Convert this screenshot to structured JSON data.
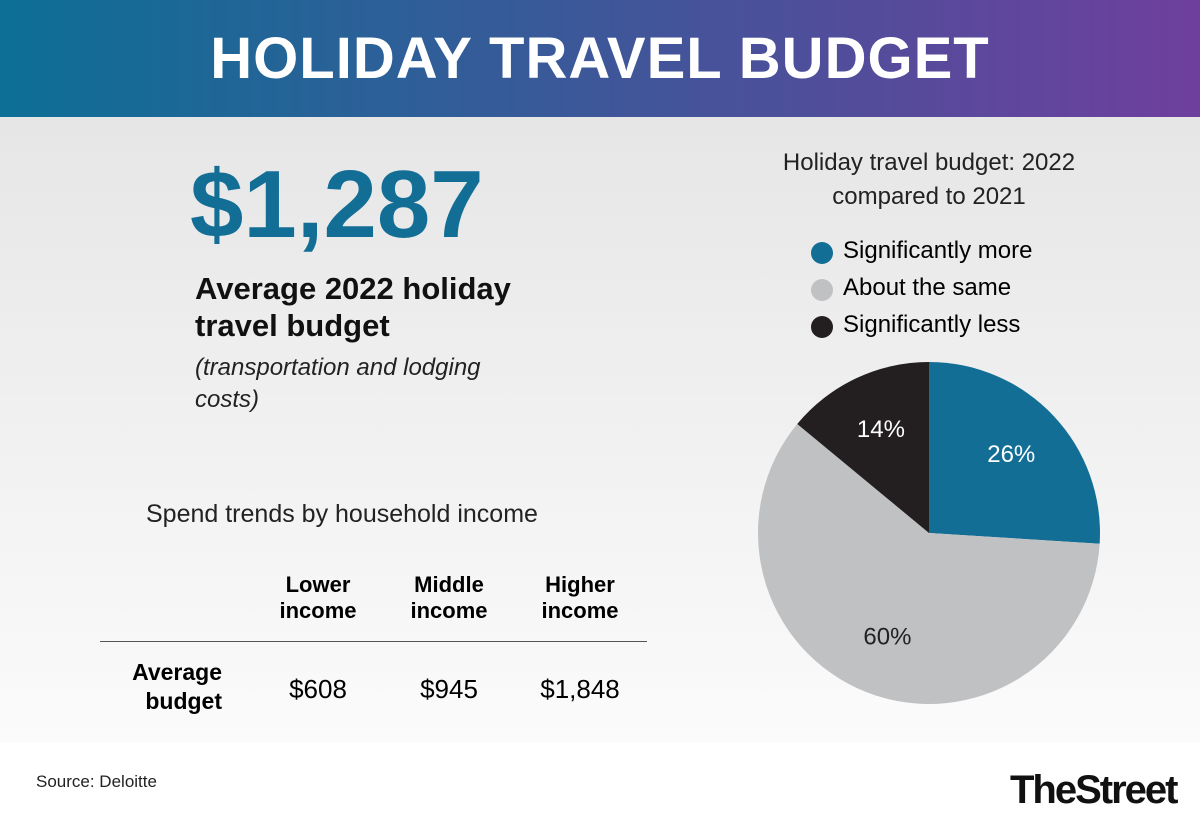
{
  "header": {
    "title": "HOLIDAY TRAVEL BUDGET"
  },
  "stat": {
    "value": "$1,287",
    "label": "Average 2022 holiday travel budget",
    "note": "(transportation and lodging costs)"
  },
  "table": {
    "title": "Spend trends by household income",
    "columns": [
      "Lower income",
      "Middle income",
      "Higher income"
    ],
    "rows": [
      [
        "Average budget",
        "$608",
        "$945",
        "$1,848"
      ]
    ]
  },
  "chart_data": {
    "type": "pie",
    "title": "Holiday travel budget: 2022 compared to 2021",
    "categories": [
      "Significantly more",
      "About the same",
      "Significantly less"
    ],
    "values": [
      26,
      60,
      14
    ],
    "value_labels": [
      "26%",
      "60%",
      "14%"
    ],
    "colors": [
      "#136e96",
      "#c0c1c3",
      "#231f20"
    ]
  },
  "footer": {
    "source": "Source: Deloitte",
    "brand": "TheStreet"
  }
}
